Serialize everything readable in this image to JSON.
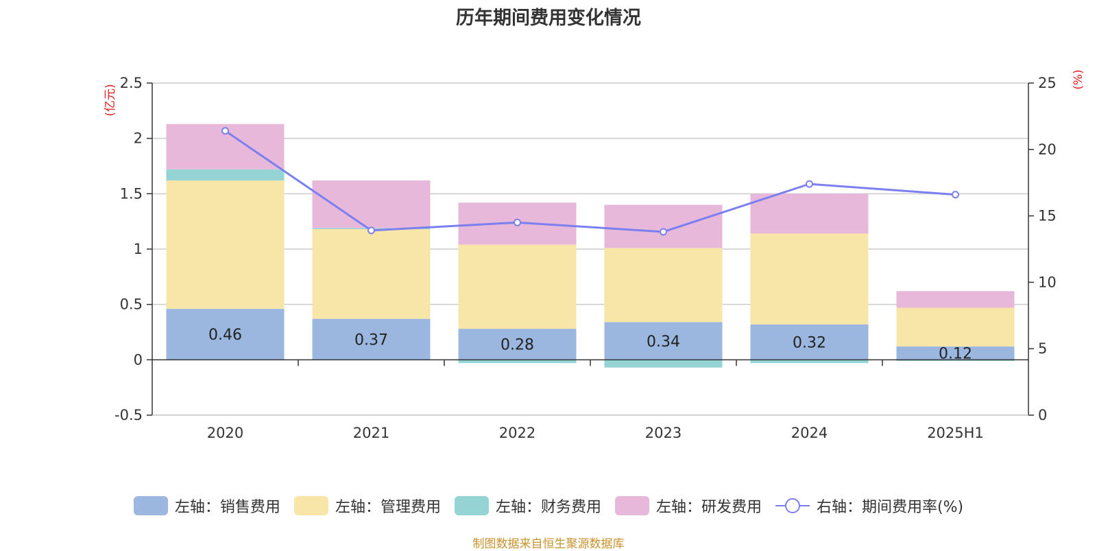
{
  "title": "历年期间费用变化情况",
  "source": "制图数据来自恒生聚源数据库",
  "chart_data": {
    "type": "bar",
    "stacked": true,
    "title": "历年期间费用变化情况",
    "categories": [
      "2020",
      "2021",
      "2022",
      "2023",
      "2024",
      "2025H1"
    ],
    "y_left": {
      "unit": "(亿元)",
      "range": [
        -0.5,
        2.5
      ],
      "ticks": [
        -0.5,
        0,
        0.5,
        1,
        1.5,
        2,
        2.5
      ],
      "tick_labels": [
        "-0.5",
        "0",
        "0.5",
        "1",
        "1.5",
        "2",
        "2.5"
      ]
    },
    "y_right": {
      "unit": "(%)",
      "range": [
        0,
        25
      ],
      "ticks": [
        0,
        5,
        10,
        15,
        20,
        25
      ],
      "tick_labels": [
        "0",
        "5",
        "10",
        "15",
        "20",
        "25"
      ]
    },
    "grid": true,
    "legend_position": "bottom",
    "series": [
      {
        "name": "左轴：销售费用",
        "axis": "left",
        "type": "bar",
        "color": "#9bb7e0",
        "values": [
          0.46,
          0.37,
          0.28,
          0.34,
          0.32,
          0.12
        ],
        "labels": [
          "0.46",
          "0.37",
          "0.28",
          "0.34",
          "0.32",
          "0.12"
        ]
      },
      {
        "name": "左轴：管理费用",
        "axis": "left",
        "type": "bar",
        "color": "#f8e6a8",
        "values": [
          1.16,
          0.81,
          0.76,
          0.67,
          0.82,
          0.35
        ]
      },
      {
        "name": "左轴：财务费用",
        "axis": "left",
        "type": "bar",
        "color": "#94d4d4",
        "values": [
          0.1,
          0.01,
          -0.03,
          -0.07,
          -0.03,
          -0.01
        ]
      },
      {
        "name": "左轴：研发费用",
        "axis": "left",
        "type": "bar",
        "color": "#e8b8da",
        "values": [
          0.41,
          0.43,
          0.38,
          0.39,
          0.36,
          0.15
        ]
      },
      {
        "name": "右轴：期间费用率(%)",
        "axis": "right",
        "type": "line",
        "color": "#7b7ff0",
        "values": [
          21.4,
          13.9,
          14.5,
          13.8,
          17.4,
          16.6
        ]
      }
    ]
  }
}
